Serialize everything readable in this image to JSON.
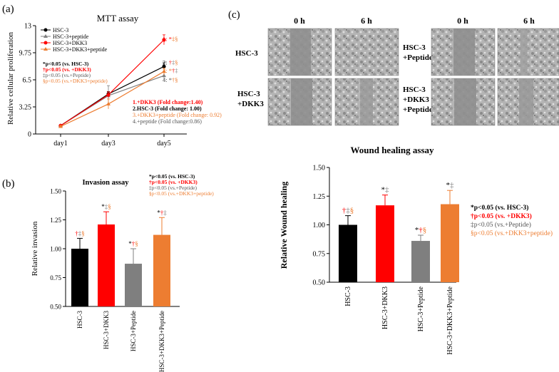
{
  "panels": {
    "a": "(a)",
    "b": "(b)",
    "c": "(c)"
  },
  "colors": {
    "black": "#000000",
    "gray": "#7f7f7f",
    "red": "#ff0000",
    "orange": "#ed7d31",
    "label_gray": "#555555"
  },
  "chart_data": [
    {
      "id": "mtt",
      "type": "line",
      "title": "MTT assay",
      "xlabel": "",
      "ylabel": "Relative cellular proliferation",
      "categories": [
        "day1",
        "day3",
        "day5"
      ],
      "yticks": [
        "0",
        "3.25",
        "6.5",
        "9.75",
        "13"
      ],
      "ylim": [
        0,
        13
      ],
      "series": [
        {
          "name": "HSC-3",
          "color": "#000000",
          "marker": "circle",
          "values": [
            1.0,
            4.8,
            8.1
          ],
          "errors": [
            0.12,
            0.3,
            0.45
          ]
        },
        {
          "name": "HSC-3+peptide",
          "color": "#7f7f7f",
          "marker": "triangle",
          "values": [
            1.0,
            4.6,
            7.0
          ],
          "errors": [
            0.1,
            1.2,
            0.5
          ]
        },
        {
          "name": "HSC-3+DKK3",
          "color": "#ff0000",
          "marker": "circle",
          "values": [
            1.0,
            4.7,
            11.3
          ],
          "errors": [
            0.12,
            0.35,
            0.6
          ]
        },
        {
          "name": "HSC-3+DKK3+peptide",
          "color": "#ed7d31",
          "marker": "triangle",
          "values": [
            0.9,
            3.6,
            7.5
          ],
          "errors": [
            0.1,
            0.6,
            0.4
          ]
        }
      ],
      "end_labels": [
        {
          "parts": [
            {
              "text": "1: *",
              "color": "#ff0000"
            },
            {
              "text": "‡§",
              "color": "#ed7d31"
            }
          ],
          "value": 11.4
        },
        {
          "parts": [
            {
              "text": "2: ",
              "color": "#000000"
            },
            {
              "text": "†",
              "color": "#ff0000"
            },
            {
              "text": "‡",
              "color": "#7f7f7f"
            },
            {
              "text": "§",
              "color": "#ed7d31"
            }
          ],
          "value": 8.6
        },
        {
          "parts": [
            {
              "text": "3: *",
              "color": "#ed7d31"
            },
            {
              "text": "†",
              "color": "#ff0000"
            },
            {
              "text": "‡",
              "color": "#7f7f7f"
            }
          ],
          "value": 7.6
        },
        {
          "parts": [
            {
              "text": "4: *",
              "color": "#555555"
            },
            {
              "text": "†§",
              "color": "#ed7d31"
            }
          ],
          "value": 6.5
        }
      ],
      "sig_legend": [
        {
          "text": "*p<0.05 (vs. HSC-3)",
          "color": "#000000"
        },
        {
          "text": "†p<0.05 (vs. +DKK3)",
          "color": "#ff0000"
        },
        {
          "text": "‡p<0.05 (vs.+Peptide)",
          "color": "#555555"
        },
        {
          "text": "§p<0.05 (vs.+DKK3+peptide)",
          "color": "#ed7d31"
        }
      ],
      "fold_changes": [
        {
          "text": "1.+DKK3 (Fold change:1.40)",
          "color": "#ff0000"
        },
        {
          "text": "2.HSC-3 (Fold change: 1.00)",
          "color": "#000000"
        },
        {
          "text": "3.+DKK3+peptide (Fold change: 0.92)",
          "color": "#ed7d31"
        },
        {
          "text": "4.+peptide (Fold change:0.86)",
          "color": "#555555"
        }
      ],
      "legend_position": "top-left"
    },
    {
      "id": "invasion",
      "type": "bar",
      "title": "Invasion assay",
      "ylabel": "Relative invasion",
      "categories": [
        "HSC-3",
        "HSC-3+DKK3",
        "HSC-3+Peptide",
        "HSC-3+DKK3+Peptide"
      ],
      "values": [
        1.0,
        1.21,
        0.87,
        1.12
      ],
      "errors": [
        0.09,
        0.11,
        0.13,
        0.15
      ],
      "bar_colors": [
        "#000000",
        "#ff0000",
        "#7f7f7f",
        "#ed7d31"
      ],
      "yticks": [
        "0.50",
        "0.75",
        "1.00",
        "1.25",
        "1.50"
      ],
      "ylim": [
        0.5,
        1.5
      ],
      "annotations": [
        [
          {
            "text": "†",
            "color": "#ff0000"
          },
          {
            "text": "‡",
            "color": "#7f7f7f"
          },
          {
            "text": "§",
            "color": "#ed7d31"
          }
        ],
        [
          {
            "text": "*",
            "color": "#000000"
          },
          {
            "text": "‡",
            "color": "#7f7f7f"
          },
          {
            "text": "§",
            "color": "#ed7d31"
          }
        ],
        [
          {
            "text": "*",
            "color": "#000000"
          },
          {
            "text": "†",
            "color": "#ff0000"
          },
          {
            "text": "§",
            "color": "#ed7d31"
          }
        ],
        [
          {
            "text": "*",
            "color": "#000000"
          },
          {
            "text": "†",
            "color": "#ff0000"
          },
          {
            "text": "‡",
            "color": "#7f7f7f"
          }
        ]
      ],
      "sig_legend": [
        {
          "text": "*p<0.05 (vs. HSC-3)",
          "color": "#000000"
        },
        {
          "text": "†p<0.05 (vs. +DKK3)",
          "color": "#ff0000"
        },
        {
          "text": "‡p<0.05 (vs.+Peptide)",
          "color": "#555555"
        },
        {
          "text": "§p<0.05 (vs.+DKK3+peptide)",
          "color": "#ed7d31"
        }
      ]
    },
    {
      "id": "wound",
      "type": "bar",
      "title": "Wound healing assay",
      "ylabel": "Relative Wound healing",
      "categories": [
        "HSC-3",
        "HSC-3+DKK3",
        "HSC-3+Peptide",
        "HSC-3+DKK3+Peptide"
      ],
      "values": [
        1.0,
        1.17,
        0.86,
        1.18
      ],
      "errors": [
        0.08,
        0.09,
        0.05,
        0.12
      ],
      "bar_colors": [
        "#000000",
        "#ff0000",
        "#7f7f7f",
        "#ed7d31"
      ],
      "yticks": [
        "0.50",
        "0.75",
        "1.00",
        "1.25",
        "1.50"
      ],
      "ylim": [
        0.5,
        1.5
      ],
      "annotations": [
        [
          {
            "text": "†",
            "color": "#ff0000"
          },
          {
            "text": "‡",
            "color": "#7f7f7f"
          },
          {
            "text": "§",
            "color": "#ed7d31"
          }
        ],
        [
          {
            "text": "*",
            "color": "#000000"
          },
          {
            "text": "‡",
            "color": "#7f7f7f"
          }
        ],
        [
          {
            "text": "*",
            "color": "#000000"
          },
          {
            "text": "†",
            "color": "#ff0000"
          },
          {
            "text": "§",
            "color": "#ed7d31"
          }
        ],
        [
          {
            "text": "*",
            "color": "#000000"
          },
          {
            "text": "‡",
            "color": "#7f7f7f"
          }
        ]
      ],
      "sig_legend": [
        {
          "text": "*p<0.05 (vs. HSC-3)",
          "color": "#000000"
        },
        {
          "text": "†p<0.05 (vs. +DKK3)",
          "color": "#ff0000"
        },
        {
          "text": "‡p<0.05 (vs.+Peptide)",
          "color": "#555555"
        },
        {
          "text": "§p<0.05 (vs.+DKK3+peptide)",
          "color": "#ed7d31"
        }
      ]
    }
  ],
  "micrographs": {
    "time_labels": [
      "0 h",
      "6 h",
      "0 h",
      "6 h"
    ],
    "row_labels": [
      [
        "HSC-3"
      ],
      [
        "HSC-3",
        "+DKK3"
      ]
    ],
    "right_row_labels": [
      [
        "HSC-3",
        "+Peptide"
      ],
      [
        "HSC-3",
        "+DKK3",
        "+Peptide"
      ]
    ]
  }
}
